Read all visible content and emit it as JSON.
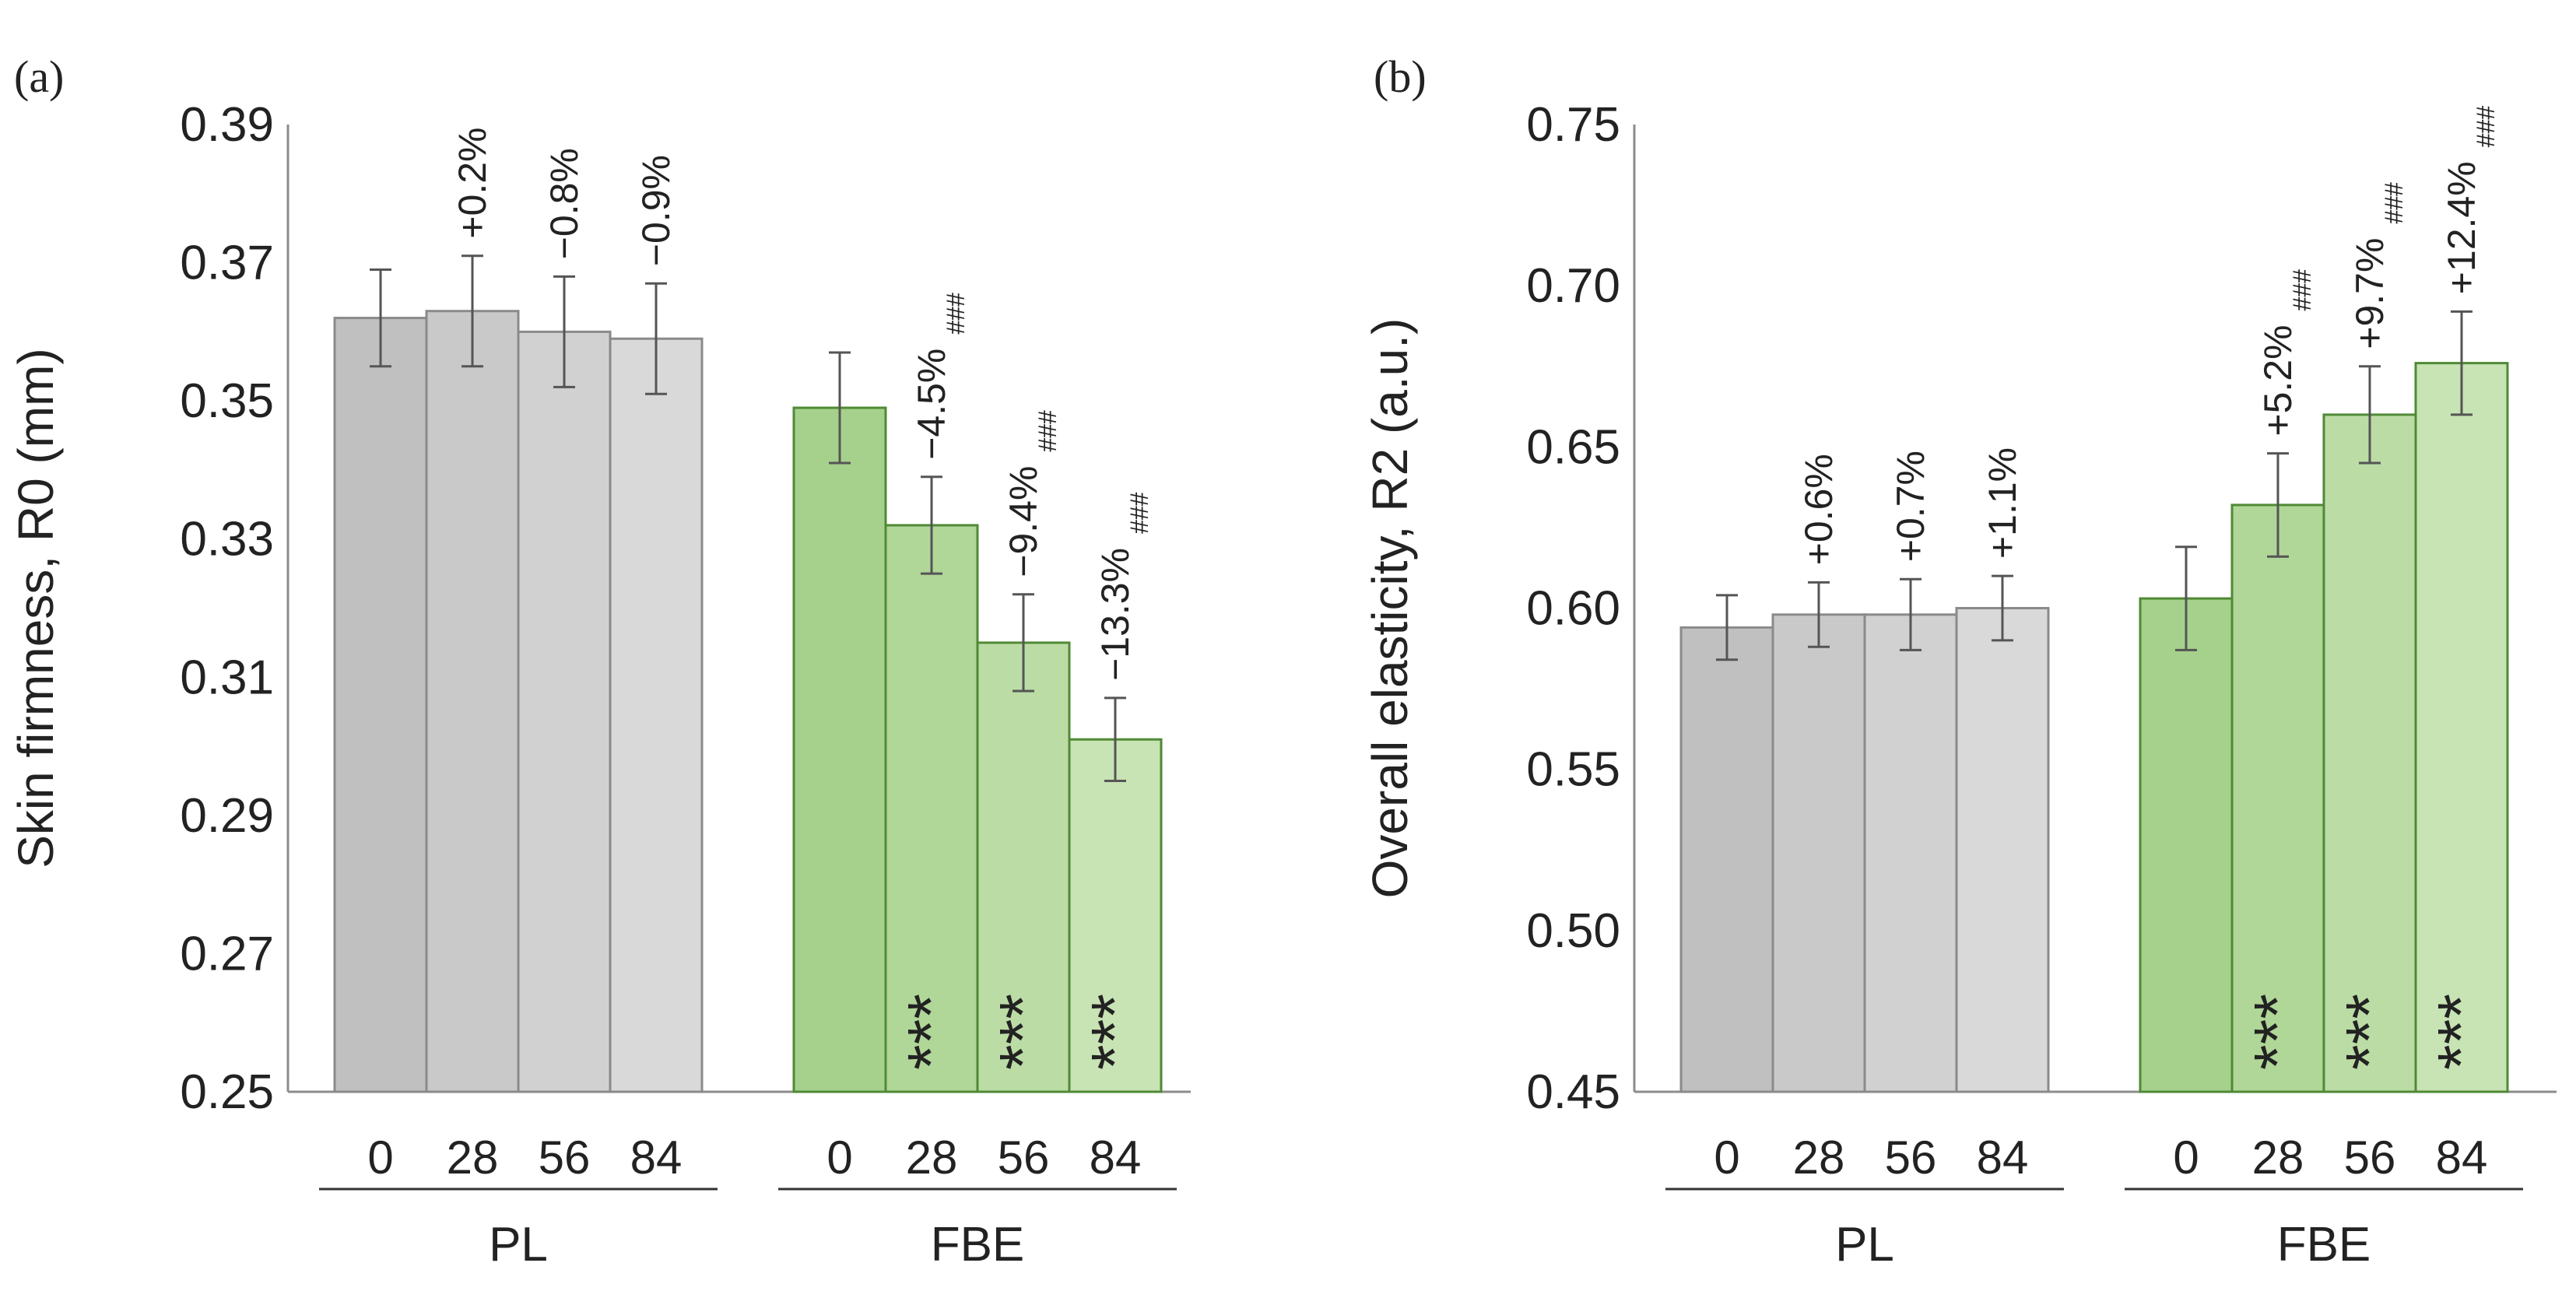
{
  "chart_data": [
    {
      "type": "bar",
      "panel_label": "(a)",
      "ylabel": "Skin firmness, R0 (mm)",
      "ylim": [
        0.25,
        0.39
      ],
      "yticks": [
        "0.25",
        "0.27",
        "0.29",
        "0.31",
        "0.33",
        "0.35",
        "0.37",
        "0.39"
      ],
      "groups": [
        {
          "name": "PL",
          "categories": [
            "0",
            "28",
            "56",
            "84"
          ],
          "values": [
            0.362,
            0.363,
            0.36,
            0.359
          ],
          "errors": [
            0.007,
            0.008,
            0.008,
            0.008
          ],
          "colors": [
            "#c0c0c0",
            "#c9c9c9",
            "#d1d1d1",
            "#d9d9d9"
          ],
          "edge_color": "#8a8a8a",
          "changes": [
            "",
            "+0.2%",
            "−0.8%",
            "−0.9%"
          ],
          "hashes": [
            "",
            "",
            "",
            ""
          ],
          "stars": [
            "",
            "",
            "",
            ""
          ]
        },
        {
          "name": "FBE",
          "categories": [
            "0",
            "28",
            "56",
            "84"
          ],
          "values": [
            0.349,
            0.332,
            0.315,
            0.301
          ],
          "errors": [
            0.008,
            0.007,
            0.007,
            0.006
          ],
          "colors": [
            "#a6d18c",
            "#b0d698",
            "#bcdca6",
            "#c8e3b4"
          ],
          "edge_color": "#4f8a35",
          "changes": [
            "",
            "−4.5%",
            "−9.4%",
            "−13.3%"
          ],
          "hashes": [
            "",
            "###",
            "###",
            "###"
          ],
          "stars": [
            "",
            "***",
            "***",
            "***"
          ]
        }
      ]
    },
    {
      "type": "bar",
      "panel_label": "(b)",
      "ylabel": "Overall elasticity, R2 (a.u.)",
      "ylim": [
        0.45,
        0.75
      ],
      "yticks": [
        "0.45",
        "0.50",
        "0.55",
        "0.60",
        "0.65",
        "0.70",
        "0.75"
      ],
      "groups": [
        {
          "name": "PL",
          "categories": [
            "0",
            "28",
            "56",
            "84"
          ],
          "values": [
            0.594,
            0.598,
            0.598,
            0.6
          ],
          "errors": [
            0.01,
            0.01,
            0.011,
            0.01
          ],
          "colors": [
            "#c0c0c0",
            "#c9c9c9",
            "#d1d1d1",
            "#d9d9d9"
          ],
          "edge_color": "#8a8a8a",
          "changes": [
            "",
            "+0.6%",
            "+0.7%",
            "+1.1%"
          ],
          "hashes": [
            "",
            "",
            "",
            ""
          ],
          "stars": [
            "",
            "",
            "",
            ""
          ]
        },
        {
          "name": "FBE",
          "categories": [
            "0",
            "28",
            "56",
            "84"
          ],
          "values": [
            0.603,
            0.632,
            0.66,
            0.676
          ],
          "errors": [
            0.016,
            0.016,
            0.015,
            0.016
          ],
          "colors": [
            "#a6d18c",
            "#b0d698",
            "#bcdca6",
            "#c8e3b4"
          ],
          "edge_color": "#4f8a35",
          "changes": [
            "",
            "+5.2%",
            "+9.7%",
            "+12.4%"
          ],
          "hashes": [
            "",
            "###",
            "###",
            "###"
          ],
          "stars": [
            "",
            "***",
            "***",
            "***"
          ]
        }
      ]
    }
  ]
}
